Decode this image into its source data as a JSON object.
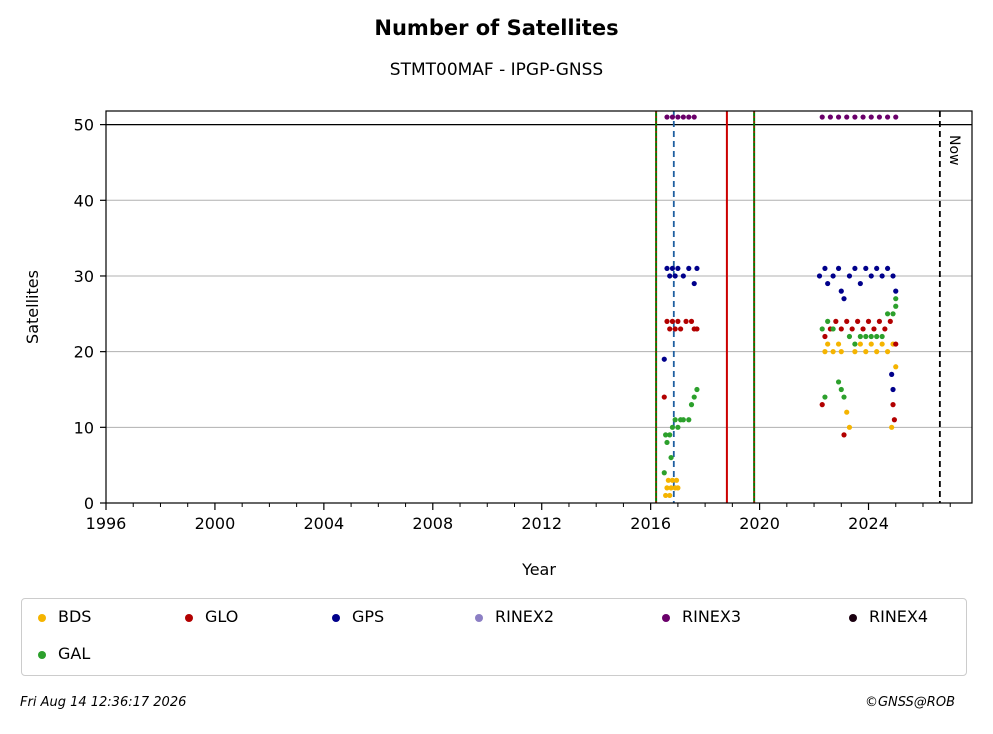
{
  "chart_data": {
    "type": "scatter",
    "title": "Number of Satellites",
    "subtitle": "STMT00MAF - IPGP-GNSS",
    "xlabel": "Year",
    "ylabel": "Satellites",
    "xlim": [
      1996,
      2027.8
    ],
    "ylim": [
      0,
      51.8
    ],
    "xticks": [
      1996,
      2000,
      2004,
      2008,
      2012,
      2016,
      2020,
      2024
    ],
    "yticks": [
      0,
      10,
      20,
      30,
      40,
      50
    ],
    "grid": "horizontal",
    "legend_position": "bottom",
    "markers": {
      "limit_line": 50,
      "equipment_change_lines": [
        2016.2,
        2019.8
      ],
      "red_lines": [
        2018.8
      ],
      "blue_dashed": [
        2016.85
      ],
      "now_line": 2026.62,
      "now_label": "Now"
    },
    "series": [
      {
        "name": "BDS",
        "color": "#f5b400",
        "points": [
          [
            2016.55,
            1
          ],
          [
            2016.6,
            2
          ],
          [
            2016.65,
            3
          ],
          [
            2016.7,
            1
          ],
          [
            2016.75,
            2
          ],
          [
            2016.8,
            3
          ],
          [
            2016.9,
            2
          ],
          [
            2016.95,
            3
          ],
          [
            2017.0,
            2
          ],
          [
            2022.4,
            20
          ],
          [
            2022.5,
            21
          ],
          [
            2022.7,
            20
          ],
          [
            2022.9,
            21
          ],
          [
            2023.0,
            20
          ],
          [
            2023.2,
            12
          ],
          [
            2023.3,
            10
          ],
          [
            2023.5,
            20
          ],
          [
            2023.7,
            21
          ],
          [
            2023.9,
            20
          ],
          [
            2024.1,
            21
          ],
          [
            2024.3,
            20
          ],
          [
            2024.5,
            21
          ],
          [
            2024.7,
            20
          ],
          [
            2024.9,
            21
          ],
          [
            2024.85,
            10
          ],
          [
            2025.0,
            18
          ]
        ]
      },
      {
        "name": "GLO",
        "color": "#b20000",
        "points": [
          [
            2016.5,
            14
          ],
          [
            2016.6,
            24
          ],
          [
            2016.7,
            23
          ],
          [
            2016.8,
            24
          ],
          [
            2016.9,
            23
          ],
          [
            2017.0,
            24
          ],
          [
            2017.1,
            23
          ],
          [
            2017.3,
            24
          ],
          [
            2017.5,
            24
          ],
          [
            2017.6,
            23
          ],
          [
            2017.7,
            23
          ],
          [
            2022.3,
            13
          ],
          [
            2022.4,
            22
          ],
          [
            2022.6,
            23
          ],
          [
            2022.8,
            24
          ],
          [
            2023.0,
            23
          ],
          [
            2023.1,
            9
          ],
          [
            2023.2,
            24
          ],
          [
            2023.4,
            23
          ],
          [
            2023.6,
            24
          ],
          [
            2023.8,
            23
          ],
          [
            2024.0,
            24
          ],
          [
            2024.2,
            23
          ],
          [
            2024.4,
            24
          ],
          [
            2024.6,
            23
          ],
          [
            2024.8,
            24
          ],
          [
            2024.9,
            13
          ],
          [
            2024.95,
            11
          ],
          [
            2025.0,
            21
          ]
        ]
      },
      {
        "name": "GPS",
        "color": "#00008b",
        "points": [
          [
            2016.5,
            19
          ],
          [
            2016.6,
            31
          ],
          [
            2016.7,
            30
          ],
          [
            2016.8,
            31
          ],
          [
            2016.9,
            30
          ],
          [
            2017.0,
            31
          ],
          [
            2017.2,
            30
          ],
          [
            2017.4,
            31
          ],
          [
            2017.6,
            29
          ],
          [
            2017.7,
            31
          ],
          [
            2022.2,
            30
          ],
          [
            2022.4,
            31
          ],
          [
            2022.5,
            29
          ],
          [
            2022.7,
            30
          ],
          [
            2022.9,
            31
          ],
          [
            2023.0,
            28
          ],
          [
            2023.1,
            27
          ],
          [
            2023.3,
            30
          ],
          [
            2023.5,
            31
          ],
          [
            2023.7,
            29
          ],
          [
            2023.9,
            31
          ],
          [
            2024.1,
            30
          ],
          [
            2024.3,
            31
          ],
          [
            2024.5,
            30
          ],
          [
            2024.7,
            31
          ],
          [
            2024.9,
            30
          ],
          [
            2024.85,
            17
          ],
          [
            2024.9,
            15
          ],
          [
            2025.0,
            28
          ]
        ]
      },
      {
        "name": "RINEX2",
        "color": "#8c7fc4",
        "points": []
      },
      {
        "name": "RINEX3",
        "color": "#6a006a",
        "points": [
          [
            2016.6,
            51
          ],
          [
            2016.8,
            51
          ],
          [
            2017.0,
            51
          ],
          [
            2017.2,
            51
          ],
          [
            2017.4,
            51
          ],
          [
            2017.6,
            51
          ],
          [
            2022.3,
            51
          ],
          [
            2022.6,
            51
          ],
          [
            2022.9,
            51
          ],
          [
            2023.2,
            51
          ],
          [
            2023.5,
            51
          ],
          [
            2023.8,
            51
          ],
          [
            2024.1,
            51
          ],
          [
            2024.4,
            51
          ],
          [
            2024.7,
            51
          ],
          [
            2025.0,
            51
          ]
        ]
      },
      {
        "name": "RINEX4",
        "color": "#1a0010",
        "points": []
      },
      {
        "name": "GAL",
        "color": "#2ca02c",
        "points": [
          [
            2016.5,
            4
          ],
          [
            2016.55,
            9
          ],
          [
            2016.6,
            8
          ],
          [
            2016.7,
            9
          ],
          [
            2016.75,
            6
          ],
          [
            2016.8,
            10
          ],
          [
            2016.9,
            11
          ],
          [
            2017.0,
            10
          ],
          [
            2017.1,
            11
          ],
          [
            2017.2,
            11
          ],
          [
            2017.4,
            11
          ],
          [
            2017.5,
            13
          ],
          [
            2017.6,
            14
          ],
          [
            2017.7,
            15
          ],
          [
            2022.3,
            23
          ],
          [
            2022.4,
            14
          ],
          [
            2022.5,
            24
          ],
          [
            2022.7,
            23
          ],
          [
            2022.9,
            16
          ],
          [
            2023.0,
            15
          ],
          [
            2023.1,
            14
          ],
          [
            2023.3,
            22
          ],
          [
            2023.5,
            21
          ],
          [
            2023.7,
            22
          ],
          [
            2023.9,
            22
          ],
          [
            2024.1,
            22
          ],
          [
            2024.3,
            22
          ],
          [
            2024.5,
            22
          ],
          [
            2024.7,
            25
          ],
          [
            2024.9,
            25
          ],
          [
            2025.0,
            26
          ],
          [
            2025.0,
            27
          ]
        ]
      }
    ]
  },
  "legend": [
    {
      "label": "BDS",
      "color": "#f5b400"
    },
    {
      "label": "GLO",
      "color": "#b20000"
    },
    {
      "label": "GPS",
      "color": "#00008b"
    },
    {
      "label": "RINEX2",
      "color": "#8c7fc4"
    },
    {
      "label": "RINEX3",
      "color": "#6a006a"
    },
    {
      "label": "RINEX4",
      "color": "#1a0010"
    },
    {
      "label": "GAL",
      "color": "#2ca02c"
    }
  ],
  "footer": {
    "timestamp": "Fri Aug 14 12:36:17 2026",
    "credit": "©GNSS@ROB"
  }
}
